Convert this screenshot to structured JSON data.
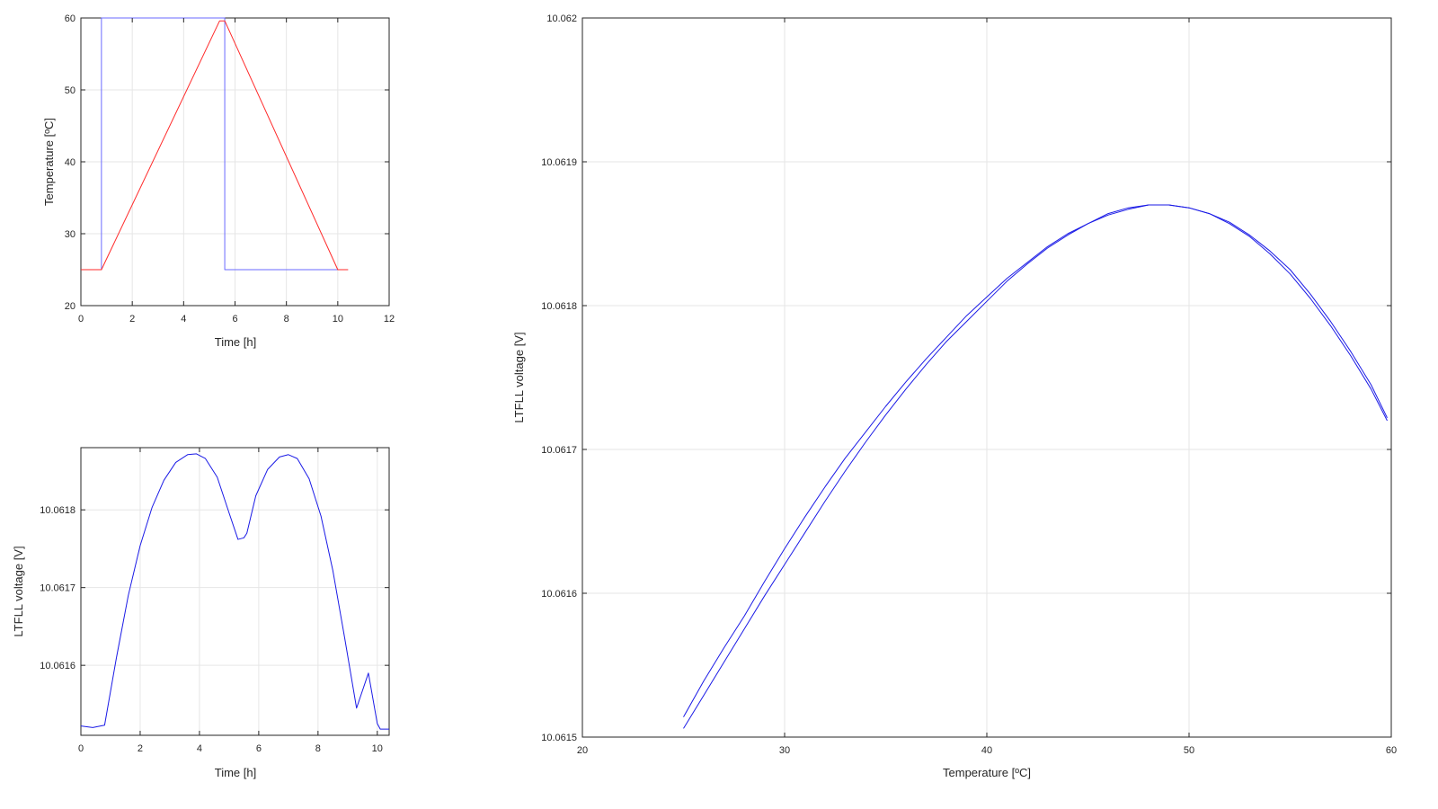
{
  "colors": {
    "setpoint": "#6a6aff",
    "measured": "#ff2a2a",
    "voltage": "#1a1ae6"
  },
  "chart_data": [
    {
      "id": "temperature",
      "type": "line",
      "xlabel": "Time [h]",
      "ylabel": "Temperature [ºC]",
      "xlim": [
        0,
        12
      ],
      "ylim": [
        20,
        60
      ],
      "xticks": [
        0,
        2,
        4,
        6,
        8,
        10,
        12
      ],
      "yticks": [
        20,
        30,
        40,
        50,
        60
      ],
      "xtick_labels": [
        "0",
        "2",
        "4",
        "6",
        "8",
        "10",
        "12"
      ],
      "ytick_labels": [
        "20",
        "30",
        "40",
        "50",
        "60"
      ],
      "grid": true,
      "series": [
        {
          "key": "setpoint",
          "color": "#6a6aff",
          "x": [
            0,
            0.8,
            0.8,
            5.6,
            5.6,
            10.4
          ],
          "y": [
            25,
            25,
            60,
            60,
            25,
            25
          ]
        },
        {
          "key": "measured",
          "color": "#ff2a2a",
          "x": [
            0,
            0.8,
            5.4,
            5.6,
            10.0,
            10.4
          ],
          "y": [
            25,
            25,
            59.6,
            59.6,
            25,
            25
          ]
        }
      ]
    },
    {
      "id": "voltage_vs_time",
      "type": "line",
      "xlabel": "Time [h]",
      "ylabel": "LTFLL voltage [V]",
      "xlim": [
        0,
        10.4
      ],
      "ylim": [
        10.06151,
        10.06188
      ],
      "xticks": [
        0,
        2,
        4,
        6,
        8,
        10
      ],
      "yticks": [
        10.0616,
        10.0617,
        10.0618
      ],
      "xtick_labels": [
        "0",
        "2",
        "4",
        "6",
        "8",
        "10"
      ],
      "ytick_labels": [
        "10.0616",
        "10.0617",
        "10.0618"
      ],
      "grid": true,
      "series": [
        {
          "key": "voltage",
          "color": "#1a1ae6",
          "x": [
            0,
            0.4,
            0.8,
            1.2,
            1.6,
            2.0,
            2.4,
            2.8,
            3.2,
            3.6,
            3.9,
            4.2,
            4.6,
            5.0,
            5.3,
            5.5,
            5.6,
            5.9,
            6.3,
            6.7,
            7.0,
            7.3,
            7.7,
            8.1,
            8.5,
            8.9,
            9.3,
            9.7,
            10.0,
            10.1,
            10.4
          ],
          "y": [
            10.061522,
            10.06152,
            10.061523,
            10.06161,
            10.06169,
            10.061754,
            10.061803,
            10.061838,
            10.061861,
            10.061871,
            10.061872,
            10.061866,
            10.061842,
            10.061796,
            10.061762,
            10.061764,
            10.06177,
            10.061818,
            10.061852,
            10.061868,
            10.061871,
            10.061866,
            10.06184,
            10.061792,
            10.061722,
            10.061635,
            10.061545,
            10.06159,
            10.061525,
            10.061518,
            10.061518
          ]
        }
      ]
    },
    {
      "id": "voltage_vs_temperature",
      "type": "line",
      "xlabel": "Temperature [ºC]",
      "ylabel": "LTFLL voltage [V]",
      "xlim": [
        20,
        60
      ],
      "ylim": [
        10.0615,
        10.062
      ],
      "xticks": [
        20,
        30,
        40,
        50,
        60
      ],
      "yticks": [
        10.0615,
        10.0616,
        10.0617,
        10.0618,
        10.0619,
        10.062
      ],
      "xtick_labels": [
        "20",
        "30",
        "40",
        "50",
        "60"
      ],
      "ytick_labels": [
        "10.0615",
        "10.0616",
        "10.0617",
        "10.0618",
        "10.0619",
        "10.062"
      ],
      "grid": true,
      "series": [
        {
          "key": "heating",
          "color": "#1a1ae6",
          "x": [
            25,
            26,
            27,
            28,
            29,
            30,
            31,
            32,
            33,
            34,
            35,
            36,
            37,
            38,
            39,
            40,
            41,
            42,
            43,
            44,
            45,
            46,
            47,
            48,
            49,
            50,
            51,
            52,
            53,
            54,
            55,
            56,
            57,
            58,
            59,
            59.8
          ],
          "y": [
            10.061514,
            10.061539,
            10.061562,
            10.061584,
            10.061608,
            10.061631,
            10.061653,
            10.061674,
            10.061694,
            10.061712,
            10.06173,
            10.061747,
            10.061763,
            10.061778,
            10.061793,
            10.061806,
            10.061819,
            10.06183,
            10.061841,
            10.06185,
            10.061857,
            10.061863,
            10.061867,
            10.06187,
            10.06187,
            10.061868,
            10.061864,
            10.061857,
            10.061848,
            10.061836,
            10.061822,
            10.061805,
            10.061786,
            10.061765,
            10.061742,
            10.06172
          ]
        },
        {
          "key": "cooling",
          "color": "#1a1ae6",
          "x": [
            59.8,
            59,
            58,
            57,
            56,
            55,
            54,
            53,
            52,
            51,
            50,
            49,
            48,
            47,
            46,
            45,
            44,
            43,
            42,
            41,
            40,
            39,
            38,
            37,
            36,
            35,
            34,
            33,
            32,
            31,
            30,
            29,
            28,
            27,
            26,
            25
          ],
          "y": [
            10.061722,
            10.061745,
            10.061768,
            10.061789,
            10.061808,
            10.061825,
            10.061838,
            10.061849,
            10.061858,
            10.061864,
            10.061868,
            10.06187,
            10.06187,
            10.061868,
            10.061864,
            10.061857,
            10.061849,
            10.06184,
            10.061829,
            10.061817,
            10.061803,
            10.061789,
            10.061775,
            10.061759,
            10.061742,
            10.061724,
            10.061705,
            10.061685,
            10.061664,
            10.061642,
            10.06162,
            10.061598,
            10.061575,
            10.061552,
            10.061529,
            10.061506
          ]
        }
      ]
    }
  ]
}
